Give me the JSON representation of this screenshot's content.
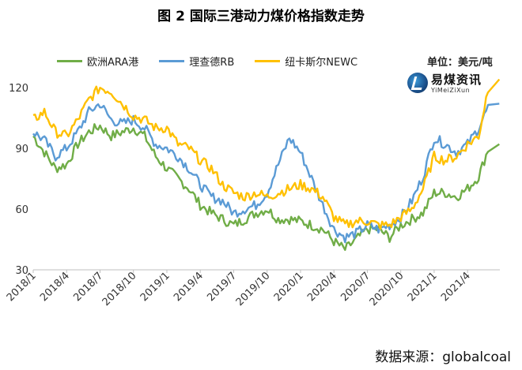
{
  "title": "图 2  国际三港动力煤价格指数走势",
  "unit_label": "单位：美元/吨",
  "source_text": "数据来源：globalcoal",
  "logo": {
    "cn": "易煤资讯",
    "en": "YiMeiZiXun"
  },
  "chart_data": {
    "type": "line",
    "title": "图 2  国际三港动力煤价格指数走势",
    "xlabel": "",
    "ylabel": "",
    "ylim": [
      30,
      125
    ],
    "yticks": [
      30,
      60,
      90,
      120
    ],
    "xlim": [
      "2018-01",
      "2021-06"
    ],
    "xticks": [
      "2018/1",
      "2018/4",
      "2018/7",
      "2018/10",
      "2019/1",
      "2019/4",
      "2019/7",
      "2019/10",
      "2020/1",
      "2020/4",
      "2020/7",
      "2020/10",
      "2021/1",
      "2021/4"
    ],
    "legend_position": "top",
    "grid": false,
    "x": [
      "2018-01",
      "2018-02",
      "2018-03",
      "2018-04",
      "2018-05",
      "2018-06",
      "2018-07",
      "2018-08",
      "2018-09",
      "2018-10",
      "2018-11",
      "2018-12",
      "2019-01",
      "2019-02",
      "2019-03",
      "2019-04",
      "2019-05",
      "2019-06",
      "2019-07",
      "2019-08",
      "2019-09",
      "2019-10",
      "2019-11",
      "2019-12",
      "2020-01",
      "2020-02",
      "2020-03",
      "2020-04",
      "2020-05",
      "2020-06",
      "2020-07",
      "2020-08",
      "2020-09",
      "2020-10",
      "2020-11",
      "2020-12",
      "2021-01",
      "2021-02",
      "2021-03",
      "2021-04",
      "2021-05",
      "2021-06"
    ],
    "series": [
      {
        "name": "欧洲ARA港",
        "color": "#70ad47",
        "values": [
          96,
          88,
          80,
          82,
          92,
          98,
          101,
          96,
          98,
          100,
          96,
          86,
          80,
          75,
          70,
          62,
          58,
          55,
          52,
          55,
          58,
          60,
          55,
          55,
          54,
          52,
          50,
          44,
          40,
          45,
          50,
          50,
          46,
          52,
          55,
          58,
          68,
          68,
          66,
          70,
          76,
          92
        ]
      },
      {
        "name": "理查德RB",
        "color": "#5b9bd5",
        "values": [
          98,
          94,
          86,
          90,
          98,
          108,
          112,
          104,
          102,
          104,
          100,
          92,
          90,
          86,
          80,
          72,
          66,
          64,
          58,
          60,
          62,
          68,
          82,
          95,
          88,
          75,
          62,
          50,
          46,
          48,
          52,
          50,
          52,
          56,
          64,
          76,
          95,
          92,
          88,
          92,
          100,
          112
        ]
      },
      {
        "name": "纽卡斯尔NEWC",
        "color": "#ffc000",
        "values": [
          104,
          108,
          98,
          96,
          104,
          114,
          120,
          118,
          112,
          106,
          104,
          100,
          100,
          92,
          90,
          84,
          80,
          72,
          68,
          66,
          68,
          66,
          68,
          70,
          72,
          70,
          66,
          56,
          52,
          54,
          54,
          52,
          52,
          56,
          60,
          70,
          86,
          84,
          86,
          92,
          96,
          124
        ]
      }
    ]
  }
}
